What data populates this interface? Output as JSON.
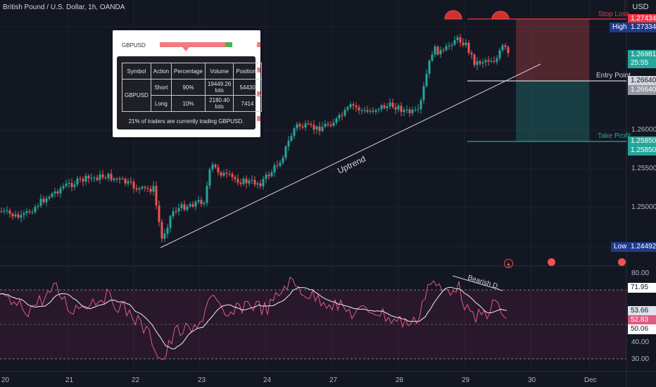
{
  "header": {
    "title": "British Pound / U.S. Dollar, 1h, OANDA",
    "currency": "USD"
  },
  "price_axis": [
    "1.26000",
    "1.25500",
    "1.25000"
  ],
  "labels": {
    "stop_loss": {
      "text": "Stop Loss",
      "value": "1.27434"
    },
    "high": {
      "text": "High",
      "value": "1.27334"
    },
    "current": {
      "value": "1.26981",
      "countdown": "25:55"
    },
    "entry_point": {
      "text": "Entry Point",
      "value1": "1.26640",
      "value2": "1.26640"
    },
    "take_profit": {
      "text": "Take Profit",
      "value1": "1.25850",
      "value2": "1.25850"
    },
    "low": {
      "text": "Low",
      "value": "1.24492"
    }
  },
  "annotations": {
    "uptrend": "Uptrend",
    "bearish_div": "Bearish D."
  },
  "rsi_axis": [
    "80.00",
    "40.00",
    "30.00"
  ],
  "rsi_labels": [
    "71.95",
    "53.66",
    "52.83",
    "50.06"
  ],
  "date_axis": [
    "20",
    "21",
    "22",
    "23",
    "24",
    "27",
    "28",
    "29",
    "30",
    "Dec"
  ],
  "sentiment": {
    "symbol": "GBPUSD",
    "headers": [
      "Symbol",
      "Action",
      "Percentage",
      "Volume",
      "Positions"
    ],
    "short": {
      "action": "Short",
      "percentage": "90%",
      "volume": "19449.26 lots",
      "positions": "54430"
    },
    "long": {
      "action": "Long",
      "percentage": "10%",
      "volume": "2180.40 lots",
      "positions": "7414"
    },
    "footer": "21% of traders are currently trading GBPUSD."
  },
  "colors": {
    "bull": "#26a69a",
    "bear": "#ef5350",
    "rsi_line": "#e05a82",
    "rsi_ma": "#f0f0f0"
  }
}
